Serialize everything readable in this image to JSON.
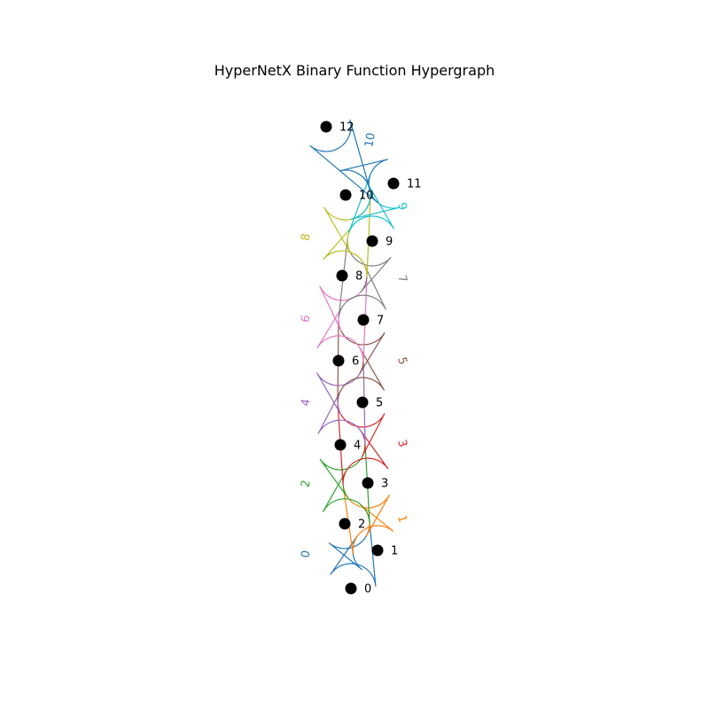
{
  "title": "HyperNetX Binary Function Hypergraph",
  "nodes": [
    "0",
    "1",
    "2",
    "3",
    "4",
    "5",
    "6",
    "7",
    "8",
    "9",
    "10",
    "11",
    "12"
  ],
  "edges": [
    {
      "label": "0",
      "members": [
        "0",
        "1",
        "2"
      ],
      "color": "#1f77b4"
    },
    {
      "label": "1",
      "members": [
        "1",
        "2",
        "3"
      ],
      "color": "#ff7f0e"
    },
    {
      "label": "2",
      "members": [
        "2",
        "3",
        "4"
      ],
      "color": "#2ca02c"
    },
    {
      "label": "3",
      "members": [
        "3",
        "4",
        "5"
      ],
      "color": "#d62728"
    },
    {
      "label": "4",
      "members": [
        "4",
        "5",
        "6"
      ],
      "color": "#9467bd"
    },
    {
      "label": "5",
      "members": [
        "5",
        "6",
        "7"
      ],
      "color": "#8c564b"
    },
    {
      "label": "6",
      "members": [
        "6",
        "7",
        "8"
      ],
      "color": "#e377c2"
    },
    {
      "label": "7",
      "members": [
        "7",
        "8",
        "9"
      ],
      "color": "#7f7f7f"
    },
    {
      "label": "8",
      "members": [
        "8",
        "9",
        "10"
      ],
      "color": "#bcbd22"
    },
    {
      "label": "9",
      "members": [
        "9",
        "10",
        "11"
      ],
      "color": "#17becf"
    },
    {
      "label": "10",
      "members": [
        "10",
        "11",
        "12"
      ],
      "color": "#1f77b4"
    }
  ]
}
